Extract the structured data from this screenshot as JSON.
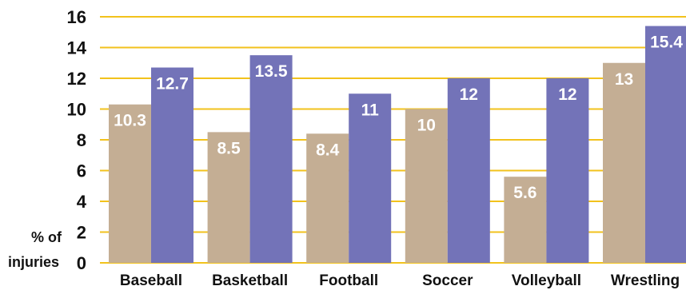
{
  "chart_data": {
    "type": "bar",
    "title": "",
    "xlabel": "",
    "ylabel_lines": [
      "% of",
      "injuries"
    ],
    "ylim": [
      0,
      16
    ],
    "yticks": [
      "0",
      "2",
      "4",
      "6",
      "8",
      "10",
      "12",
      "14",
      "16"
    ],
    "categories": [
      "Baseball",
      "Basketball",
      "Football",
      "Soccer",
      "Volleyball",
      "Wrestling"
    ],
    "series": [
      {
        "color": "#c4ae94",
        "values": [
          10.3,
          8.5,
          8.4,
          10,
          5.6,
          13
        ],
        "labels": [
          "10.3",
          "8.5",
          "8.4",
          "10",
          "5.6",
          "13"
        ]
      },
      {
        "color": "#7373b8",
        "values": [
          12.7,
          13.5,
          11,
          12,
          12,
          15.4
        ],
        "labels": [
          "12.7",
          "13.5",
          "11",
          "12",
          "12",
          "15.4"
        ]
      }
    ],
    "grid": true,
    "grid_color": "#f2c21c",
    "legend": "none"
  }
}
